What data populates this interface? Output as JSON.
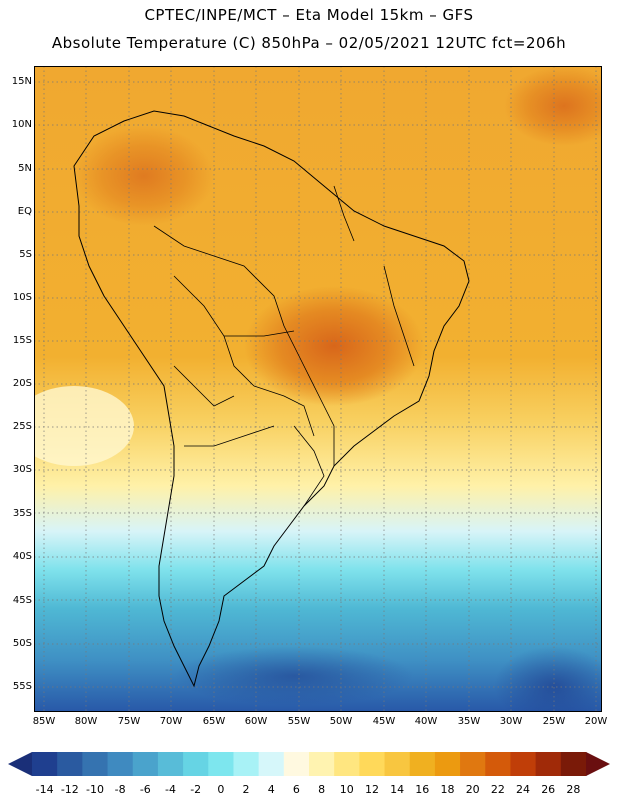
{
  "title": {
    "line1": "CPTEC/INPE/MCT –  Eta Model 15km – GFS",
    "line2": "Absolute Temperature (C) 850hPa – 02/05/2021 12UTC fct=206h"
  },
  "map": {
    "region": "South America",
    "variable": "Absolute Temperature at 850hPa",
    "units": "C",
    "lat_labels": [
      "15N",
      "10N",
      "5N",
      "EQ",
      "5S",
      "10S",
      "15S",
      "20S",
      "25S",
      "30S",
      "35S",
      "40S",
      "45S",
      "50S",
      "55S"
    ],
    "lon_labels": [
      "85W",
      "80W",
      "75W",
      "70W",
      "65W",
      "60W",
      "55W",
      "50W",
      "45W",
      "40W",
      "35W",
      "30W",
      "25W",
      "20W"
    ]
  },
  "colorbar": {
    "labels": [
      "-14",
      "-12",
      "-10",
      "-8",
      "-6",
      "-4",
      "-2",
      "0",
      "2",
      "4",
      "6",
      "8",
      "10",
      "12",
      "14",
      "16",
      "18",
      "20",
      "22",
      "24",
      "26",
      "28"
    ],
    "colors": [
      "#1f3f8f",
      "#2a5aa0",
      "#3573b0",
      "#3f8ac0",
      "#4aa3cc",
      "#58bcd8",
      "#66d4e4",
      "#7de6ee",
      "#a8f2f6",
      "#d6f7fa",
      "#fff9e0",
      "#fff3b0",
      "#ffe680",
      "#ffd95a",
      "#f8c640",
      "#f0b020",
      "#ec9a10",
      "#e07810",
      "#d45a0a",
      "#c03e08",
      "#a02a08",
      "#7a1a08"
    ],
    "low_color": "#1a2f78",
    "high_color": "#6a0f10"
  }
}
